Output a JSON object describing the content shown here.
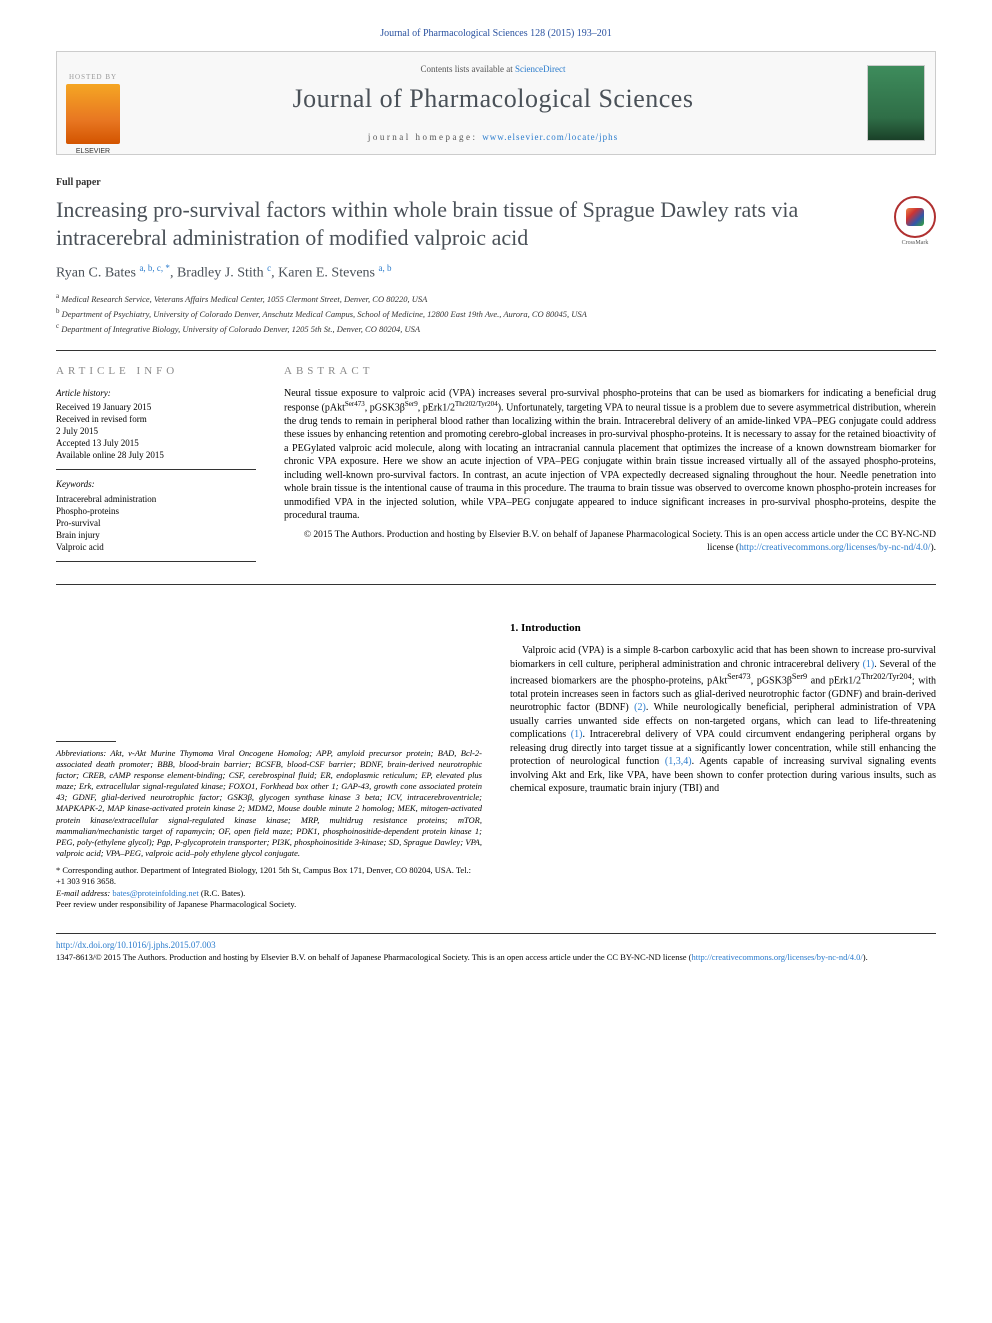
{
  "topbar": "Journal of Pharmacological Sciences 128 (2015) 193–201",
  "header": {
    "hosted_by": "HOSTED BY",
    "contents_prefix": "Contents lists available at ",
    "contents_link": "ScienceDirect",
    "journal_name": "Journal of Pharmacological Sciences",
    "homepage_prefix": "journal homepage: ",
    "homepage_url": "www.elsevier.com/locate/jphs"
  },
  "paper_type": "Full paper",
  "title": "Increasing pro-survival factors within whole brain tissue of Sprague Dawley rats via intracerebral administration of modified valproic acid",
  "crossmark_label": "CrossMark",
  "authors_html": "Ryan C. Bates <sup>a, b, c, *</sup>, Bradley J. Stith <sup>c</sup>, Karen E. Stevens <sup>a, b</sup>",
  "affiliations": [
    "a Medical Research Service, Veterans Affairs Medical Center, 1055 Clermont Street, Denver, CO 80220, USA",
    "b Department of Psychiatry, University of Colorado Denver, Anschutz Medical Campus, School of Medicine, 12800 East 19th Ave., Aurora, CO 80045, USA",
    "c Department of Integrative Biology, University of Colorado Denver, 1205 5th St., Denver, CO 80204, USA"
  ],
  "article_info": {
    "head": "ARTICLE INFO",
    "history_label": "Article history:",
    "history": [
      "Received 19 January 2015",
      "Received in revised form",
      "2 July 2015",
      "Accepted 13 July 2015",
      "Available online 28 July 2015"
    ],
    "keywords_label": "Keywords:",
    "keywords": [
      "Intracerebral administration",
      "Phospho-proteins",
      "Pro-survival",
      "Brain injury",
      "Valproic acid"
    ]
  },
  "abstract": {
    "head": "ABSTRACT",
    "text": "Neural tissue exposure to valproic acid (VPA) increases several pro-survival phospho-proteins that can be used as biomarkers for indicating a beneficial drug response (pAktSer473, pGSK3βSer9, pErk1/2Thr202/Tyr204). Unfortunately, targeting VPA to neural tissue is a problem due to severe asymmetrical distribution, wherein the drug tends to remain in peripheral blood rather than localizing within the brain. Intracerebral delivery of an amide-linked VPA–PEG conjugate could address these issues by enhancing retention and promoting cerebro-global increases in pro-survival phospho-proteins. It is necessary to assay for the retained bioactivity of a PEGylated valproic acid molecule, along with locating an intracranial cannula placement that optimizes the increase of a known downstream biomarker for chronic VPA exposure. Here we show an acute injection of VPA–PEG conjugate within brain tissue increased virtually all of the assayed phospho-proteins, including well-known pro-survival factors. In contrast, an acute injection of VPA expectedly decreased signaling throughout the hour. Needle penetration into whole brain tissue is the intentional cause of trauma in this procedure. The trauma to brain tissue was observed to overcome known phospho-protein increases for unmodified VPA in the injected solution, while VPA–PEG conjugate appeared to induce significant increases in pro-survival phospho-proteins, despite the procedural trauma.",
    "copyright_prefix": "© 2015 The Authors. Production and hosting by Elsevier B.V. on behalf of Japanese Pharmacological Society. This is an open access article under the CC BY-NC-ND license (",
    "copyright_url": "http://creativecommons.org/licenses/by-nc-nd/4.0/",
    "copyright_suffix": ")."
  },
  "abbreviations": "Abbreviations: Akt, v-Akt Murine Thymoma Viral Oncogene Homolog; APP, amyloid precursor protein; BAD, Bcl-2-associated death promoter; BBB, blood-brain barrier; BCSFB, blood-CSF barrier; BDNF, brain-derived neurotrophic factor; CREB, cAMP response element-binding; CSF, cerebrospinal fluid; ER, endoplasmic reticulum; EP, elevated plus maze; Erk, extracellular signal-regulated kinase; FOXO1, Forkhead box other 1; GAP-43, growth cone associated protein 43; GDNF, glial-derived neurotrophic factor; GSK3β, glycogen synthase kinase 3 beta; ICV, intracerebroventricle; MAPKAPK-2, MAP kinase-activated protein kinase 2; MDM2, Mouse double minute 2 homolog; MEK, mitogen-activated protein kinase/extracellular signal-regulated kinase kinase; MRP, multidrug resistance proteins; mTOR, mammalian/mechanistic target of rapamycin; OF, open field maze; PDK1, phosphoinositide-dependent protein kinase 1; PEG, poly-(ethylene glycol); Pgp, P-glycoprotein transporter; PI3K, phosphoinositide 3-kinase; SD, Sprague Dawley; VPA, valproic acid; VPA–PEG, valproic acid–poly ethylene glycol conjugate.",
  "corresponding": {
    "line1": "* Corresponding author. Department of Integrated Biology, 1201 5th St, Campus Box 171, Denver, CO 80204, USA. Tel.: +1 303 916 3658.",
    "email_label": "E-mail address: ",
    "email": "bates@proteinfolding.net",
    "email_suffix": " (R.C. Bates).",
    "peer": "Peer review under responsibility of Japanese Pharmacological Society."
  },
  "intro": {
    "head": "1. Introduction",
    "text": "Valproic acid (VPA) is a simple 8-carbon carboxylic acid that has been shown to increase pro-survival biomarkers in cell culture, peripheral administration and chronic intracerebral delivery (1). Several of the increased biomarkers are the phospho-proteins, pAktSer473, pGSK3βSer9 and pErk1/2Thr202/Tyr204; with total protein increases seen in factors such as glial-derived neurotrophic factor (GDNF) and brain-derived neurotrophic factor (BDNF) (2). While neurologically beneficial, peripheral administration of VPA usually carries unwanted side effects on non-targeted organs, which can lead to life-threatening complications (1). Intracerebral delivery of VPA could circumvent endangering peripheral organs by releasing drug directly into target tissue at a significantly lower concentration, while still enhancing the protection of neurological function (1,3,4). Agents capable of increasing survival signaling events involving Akt and Erk, like VPA, have been shown to confer protection during various insults, such as chemical exposure, traumatic brain injury (TBI) and"
  },
  "footer": {
    "doi": "http://dx.doi.org/10.1016/j.jphs.2015.07.003",
    "issn": "1347-8613/© 2015 The Authors. Production and hosting by Elsevier B.V. on behalf of Japanese Pharmacological Society. This is an open access article under the CC BY-NC-ND license (",
    "issn_url": "http://creativecommons.org/licenses/by-nc-nd/4.0/",
    "issn_suffix": ")."
  },
  "colors": {
    "link": "#2a7bcc",
    "heading_gray": "#4a5158"
  }
}
